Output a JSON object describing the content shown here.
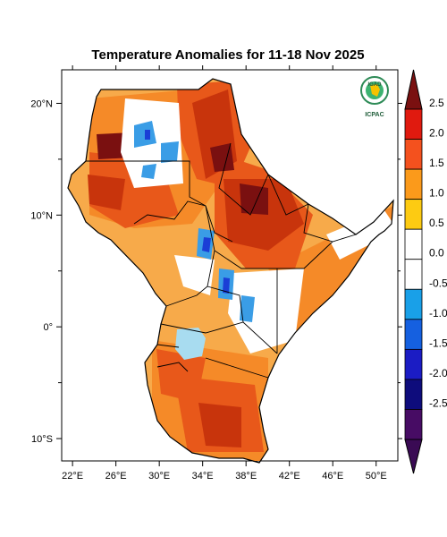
{
  "title": "Temperature Anomalies for 11-18 Nov 2025",
  "logo": {
    "top_text": "IGAD",
    "bottom_text": "ICPAC"
  },
  "axes": {
    "lon_labels": [
      "22°E",
      "26°E",
      "30°E",
      "34°E",
      "38°E",
      "42°E",
      "46°E",
      "50°E"
    ],
    "lat_labels": [
      "20°N",
      "10°N",
      "0°",
      "10°S"
    ],
    "lon_range": [
      21,
      52
    ],
    "lat_range": [
      -12,
      23
    ]
  },
  "colorbar": {
    "labels": [
      "2.5",
      "2.0",
      "1.5",
      "1.0",
      "0.5",
      "0.0",
      "-0.5",
      "-1.0",
      "-1.5",
      "-2.0",
      "-2.5"
    ],
    "colors": [
      "#e01a0f",
      "#f4511e",
      "#fb9a1b",
      "#fdcb12",
      "#ffffff",
      "#ffffff",
      "#19a0e8",
      "#1560e0",
      "#1b1cc4",
      "#0e0c7c",
      "#470c64"
    ],
    "top_arrow_color": "#7a1010",
    "bottom_arrow_color": "#3a0a54"
  },
  "colors": {
    "hot_extreme": "#7a1010",
    "hot_high": "#c8340c",
    "hot_mid": "#e8581a",
    "warm": "#f58a28",
    "mild": "#f7aa4a",
    "neutral": "#ffffff",
    "cool": "#3a9de6",
    "cold": "#1a3ed6",
    "lake": "#a8dcf0"
  }
}
